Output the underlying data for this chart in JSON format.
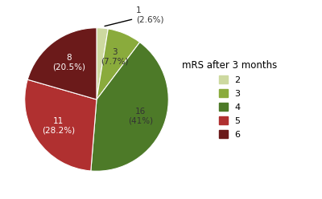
{
  "labels": [
    "2",
    "3",
    "4",
    "5",
    "6"
  ],
  "values": [
    1,
    3,
    16,
    11,
    8
  ],
  "percentages": [
    "2.6%",
    "7.7%",
    "41%",
    "28.2%",
    "20.5%"
  ],
  "colors": [
    "#cdd9a0",
    "#8aab3c",
    "#4d7a28",
    "#b03030",
    "#6b1a1a"
  ],
  "legend_title": "mRS after 3 months",
  "legend_labels": [
    "2",
    "3",
    "4",
    "5",
    "6"
  ],
  "legend_colors": [
    "#cdd9a0",
    "#8aab3c",
    "#4d7a28",
    "#b03030",
    "#6b1a1a"
  ],
  "startangle": 90,
  "figure_bg": "#ffffff",
  "text_label_colors": [
    "#333333",
    "#333333",
    "#333333",
    "#ffffff",
    "#ffffff"
  ]
}
